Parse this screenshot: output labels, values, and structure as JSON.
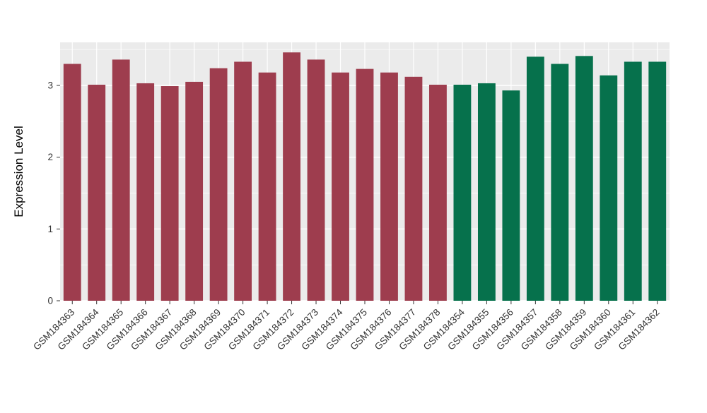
{
  "chart_data": {
    "type": "bar",
    "title": "",
    "xlabel": "",
    "ylabel": "Expression Level",
    "ylim": [
      0,
      3.6
    ],
    "yticks": [
      0,
      1,
      2,
      3
    ],
    "yticks_minor": [
      0.5,
      1.5,
      2.5,
      3.5
    ],
    "grid": "on",
    "legend": "none",
    "panel_background": "#EBEBEB",
    "gridline_color": "#FFFFFF",
    "tick_color": "#333333",
    "series": [
      {
        "name": "group-maroon",
        "color": "#9E3D4E",
        "categories": [
          "GSM184363",
          "GSM184364",
          "GSM184365",
          "GSM184366",
          "GSM184367",
          "GSM184368",
          "GSM184369",
          "GSM184370",
          "GSM184371",
          "GSM184372",
          "GSM184373",
          "GSM184374",
          "GSM184375",
          "GSM184376",
          "GSM184377",
          "GSM184378"
        ],
        "values": [
          3.3,
          3.01,
          3.36,
          3.03,
          2.99,
          3.05,
          3.24,
          3.33,
          3.18,
          3.46,
          3.36,
          3.18,
          3.23,
          3.18,
          3.12,
          3.01
        ]
      },
      {
        "name": "group-green",
        "color": "#06714C",
        "categories": [
          "GSM184354",
          "GSM184355",
          "GSM184356",
          "GSM184357",
          "GSM184358",
          "GSM184359",
          "GSM184360",
          "GSM184361",
          "GSM184362"
        ],
        "values": [
          3.01,
          3.03,
          2.93,
          3.4,
          3.3,
          3.41,
          3.14,
          3.33,
          3.33
        ]
      }
    ]
  }
}
